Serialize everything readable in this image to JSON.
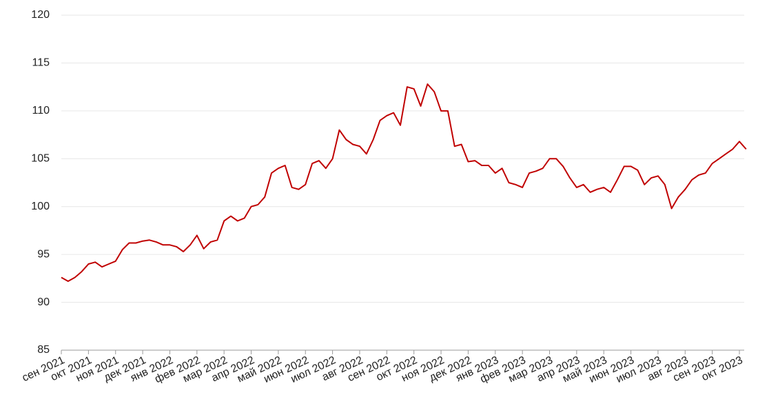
{
  "chart_data": {
    "type": "line",
    "categories": [
      "сен 2021",
      null,
      null,
      null,
      "окт 2021",
      null,
      null,
      null,
      "ноя 2021",
      null,
      null,
      null,
      "дек 2021",
      null,
      null,
      null,
      "янв 2022",
      null,
      null,
      null,
      "фев 2022",
      null,
      null,
      null,
      "мар 2022",
      null,
      null,
      null,
      "апр 2022",
      null,
      null,
      null,
      "май 2022",
      null,
      null,
      null,
      "июн 2022",
      null,
      null,
      null,
      "июл 2022",
      null,
      null,
      null,
      "авг 2022",
      null,
      null,
      null,
      "сен 2022",
      null,
      null,
      null,
      "окт 2022",
      null,
      null,
      null,
      "ноя 2022",
      null,
      null,
      null,
      "дек 2022",
      null,
      null,
      null,
      "янв 2023",
      null,
      null,
      null,
      "фев 2023",
      null,
      null,
      null,
      "мар 2023",
      null,
      null,
      null,
      "апр 2023",
      null,
      null,
      null,
      "май 2023",
      null,
      null,
      null,
      "июн 2023",
      null,
      null,
      null,
      "июл 2023",
      null,
      null,
      null,
      "авг 2023",
      null,
      null,
      null,
      "сен 2023",
      null,
      null,
      null,
      "окт 2023",
      null
    ],
    "values": [
      92.6,
      92.2,
      92.6,
      93.2,
      94.0,
      94.2,
      93.7,
      94.0,
      94.3,
      95.5,
      96.2,
      96.2,
      96.4,
      96.5,
      96.3,
      96.0,
      96.0,
      95.8,
      95.3,
      96.0,
      97.0,
      95.6,
      96.3,
      96.5,
      98.5,
      99.0,
      98.5,
      98.8,
      100.0,
      100.2,
      101.0,
      103.5,
      104.0,
      104.3,
      102.0,
      101.8,
      102.3,
      104.5,
      104.8,
      104.0,
      105.0,
      108.0,
      107.0,
      106.5,
      106.3,
      105.5,
      107.0,
      109.0,
      109.5,
      109.8,
      108.5,
      112.5,
      112.3,
      110.5,
      112.8,
      112.0,
      110.0,
      110.0,
      106.3,
      106.5,
      104.7,
      104.8,
      104.3,
      104.3,
      103.5,
      104.0,
      102.5,
      102.3,
      102.0,
      103.5,
      103.7,
      104.0,
      105.0,
      105.0,
      104.2,
      103.0,
      102.0,
      102.3,
      101.5,
      101.8,
      102.0,
      101.5,
      102.8,
      104.2,
      104.2,
      103.8,
      102.3,
      103.0,
      103.2,
      102.3,
      99.8,
      101.0,
      101.8,
      102.8,
      103.3,
      103.5,
      104.5,
      105.0,
      105.5,
      106.0,
      106.8,
      106.0
    ],
    "color": "#c00000",
    "ylim": [
      85,
      120
    ],
    "yticks": [
      85,
      90,
      95,
      100,
      105,
      110,
      115,
      120
    ],
    "grid": true
  }
}
